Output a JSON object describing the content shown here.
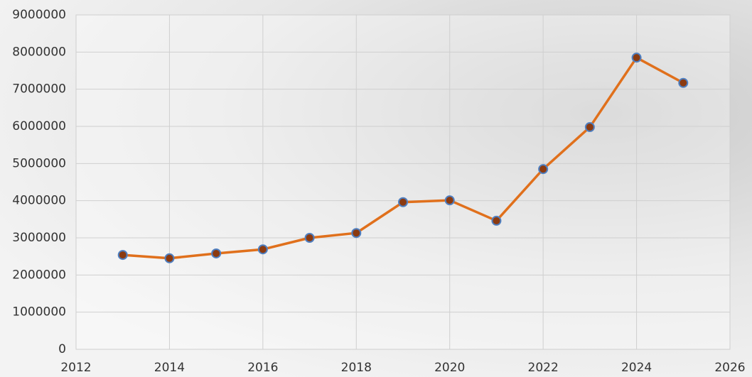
{
  "chart_data": {
    "type": "line",
    "x": [
      2013,
      2014,
      2015,
      2016,
      2017,
      2018,
      2019,
      2020,
      2021,
      2022,
      2023,
      2024,
      2025
    ],
    "series": [
      {
        "color": "#e0701c",
        "marker_color": "#8b3a10",
        "marker_edge": "#4f7fc0",
        "values": [
          2540000,
          2450000,
          2580000,
          2690000,
          3000000,
          3130000,
          3960000,
          4010000,
          3460000,
          4850000,
          5980000,
          7850000,
          7170000
        ]
      }
    ],
    "xlim": [
      2012,
      2026
    ],
    "xticks": [
      2012,
      2014,
      2016,
      2018,
      2020,
      2022,
      2024,
      2026
    ],
    "ylim": [
      0,
      9000000
    ],
    "yticks": [
      0,
      1000000,
      2000000,
      3000000,
      4000000,
      5000000,
      6000000,
      7000000,
      8000000,
      9000000
    ],
    "grid": true
  }
}
